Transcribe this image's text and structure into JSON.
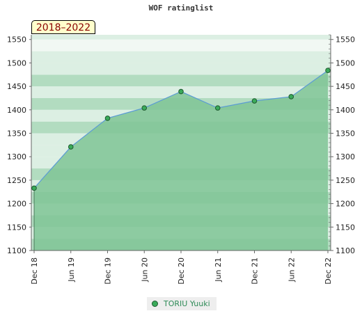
{
  "chart_data": {
    "type": "area",
    "title": "WOF ratinglist",
    "period_label": "2018–2022",
    "x_labels": [
      "Dec 18",
      "Jun 19",
      "Dec 19",
      "Jun 20",
      "Dec 20",
      "Jun 21",
      "Dec 21",
      "Jun 22",
      "Dec 22"
    ],
    "y_ticks": [
      1100,
      1150,
      1200,
      1250,
      1300,
      1350,
      1400,
      1450,
      1500,
      1550
    ],
    "ylim": [
      1100,
      1560
    ],
    "series": [
      {
        "name": "TORIU Yuuki",
        "values": [
          1233,
          1321,
          1382,
          1404,
          1439,
          1404,
          1419,
          1428,
          1484
        ]
      }
    ],
    "grid": true,
    "legend_position": "bottom-center",
    "colors": {
      "line": "#5b9bd5",
      "marker": "#3aaa5a",
      "marker_stroke": "#1f5a2f",
      "area": "#7fc495",
      "band_dark": "#b2dcc0",
      "band_light": "#dcefe3",
      "band_pale": "#f1f8f3"
    }
  }
}
